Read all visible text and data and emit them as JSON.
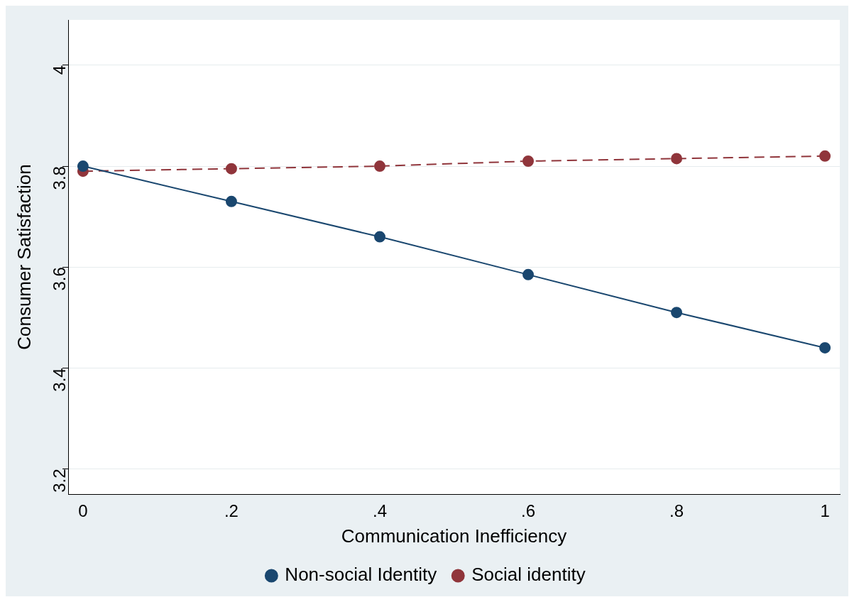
{
  "chart_data": {
    "type": "line",
    "xlabel": "Communication Inefficiency",
    "ylabel": "Consumer Satisfaction",
    "x": [
      0,
      0.2,
      0.4,
      0.6,
      0.8,
      1
    ],
    "series": [
      {
        "name": "Non-social Identity",
        "color": "#1a476f",
        "values": [
          3.8,
          3.73,
          3.66,
          3.585,
          3.51,
          3.44
        ],
        "line_style": "solid",
        "marker": "circle"
      },
      {
        "name": "Social identity",
        "color": "#90353b",
        "values": [
          3.79,
          3.795,
          3.8,
          3.81,
          3.815,
          3.82
        ],
        "line_style": "dashed",
        "marker": "circle"
      }
    ],
    "xlim": [
      -0.02,
      1.02
    ],
    "xticks": [
      0,
      {
        "value": 0.2,
        "label": ".2"
      },
      {
        "value": 0.4,
        "label": ".4"
      },
      {
        "value": 0.6,
        "label": ".6"
      },
      {
        "value": 0.8,
        "label": ".8"
      },
      1
    ],
    "ylim": [
      3.15,
      4.09
    ],
    "yticks": [
      3.2,
      3.4,
      3.6,
      3.8,
      4
    ],
    "grid": "y",
    "legend": "bottom"
  }
}
